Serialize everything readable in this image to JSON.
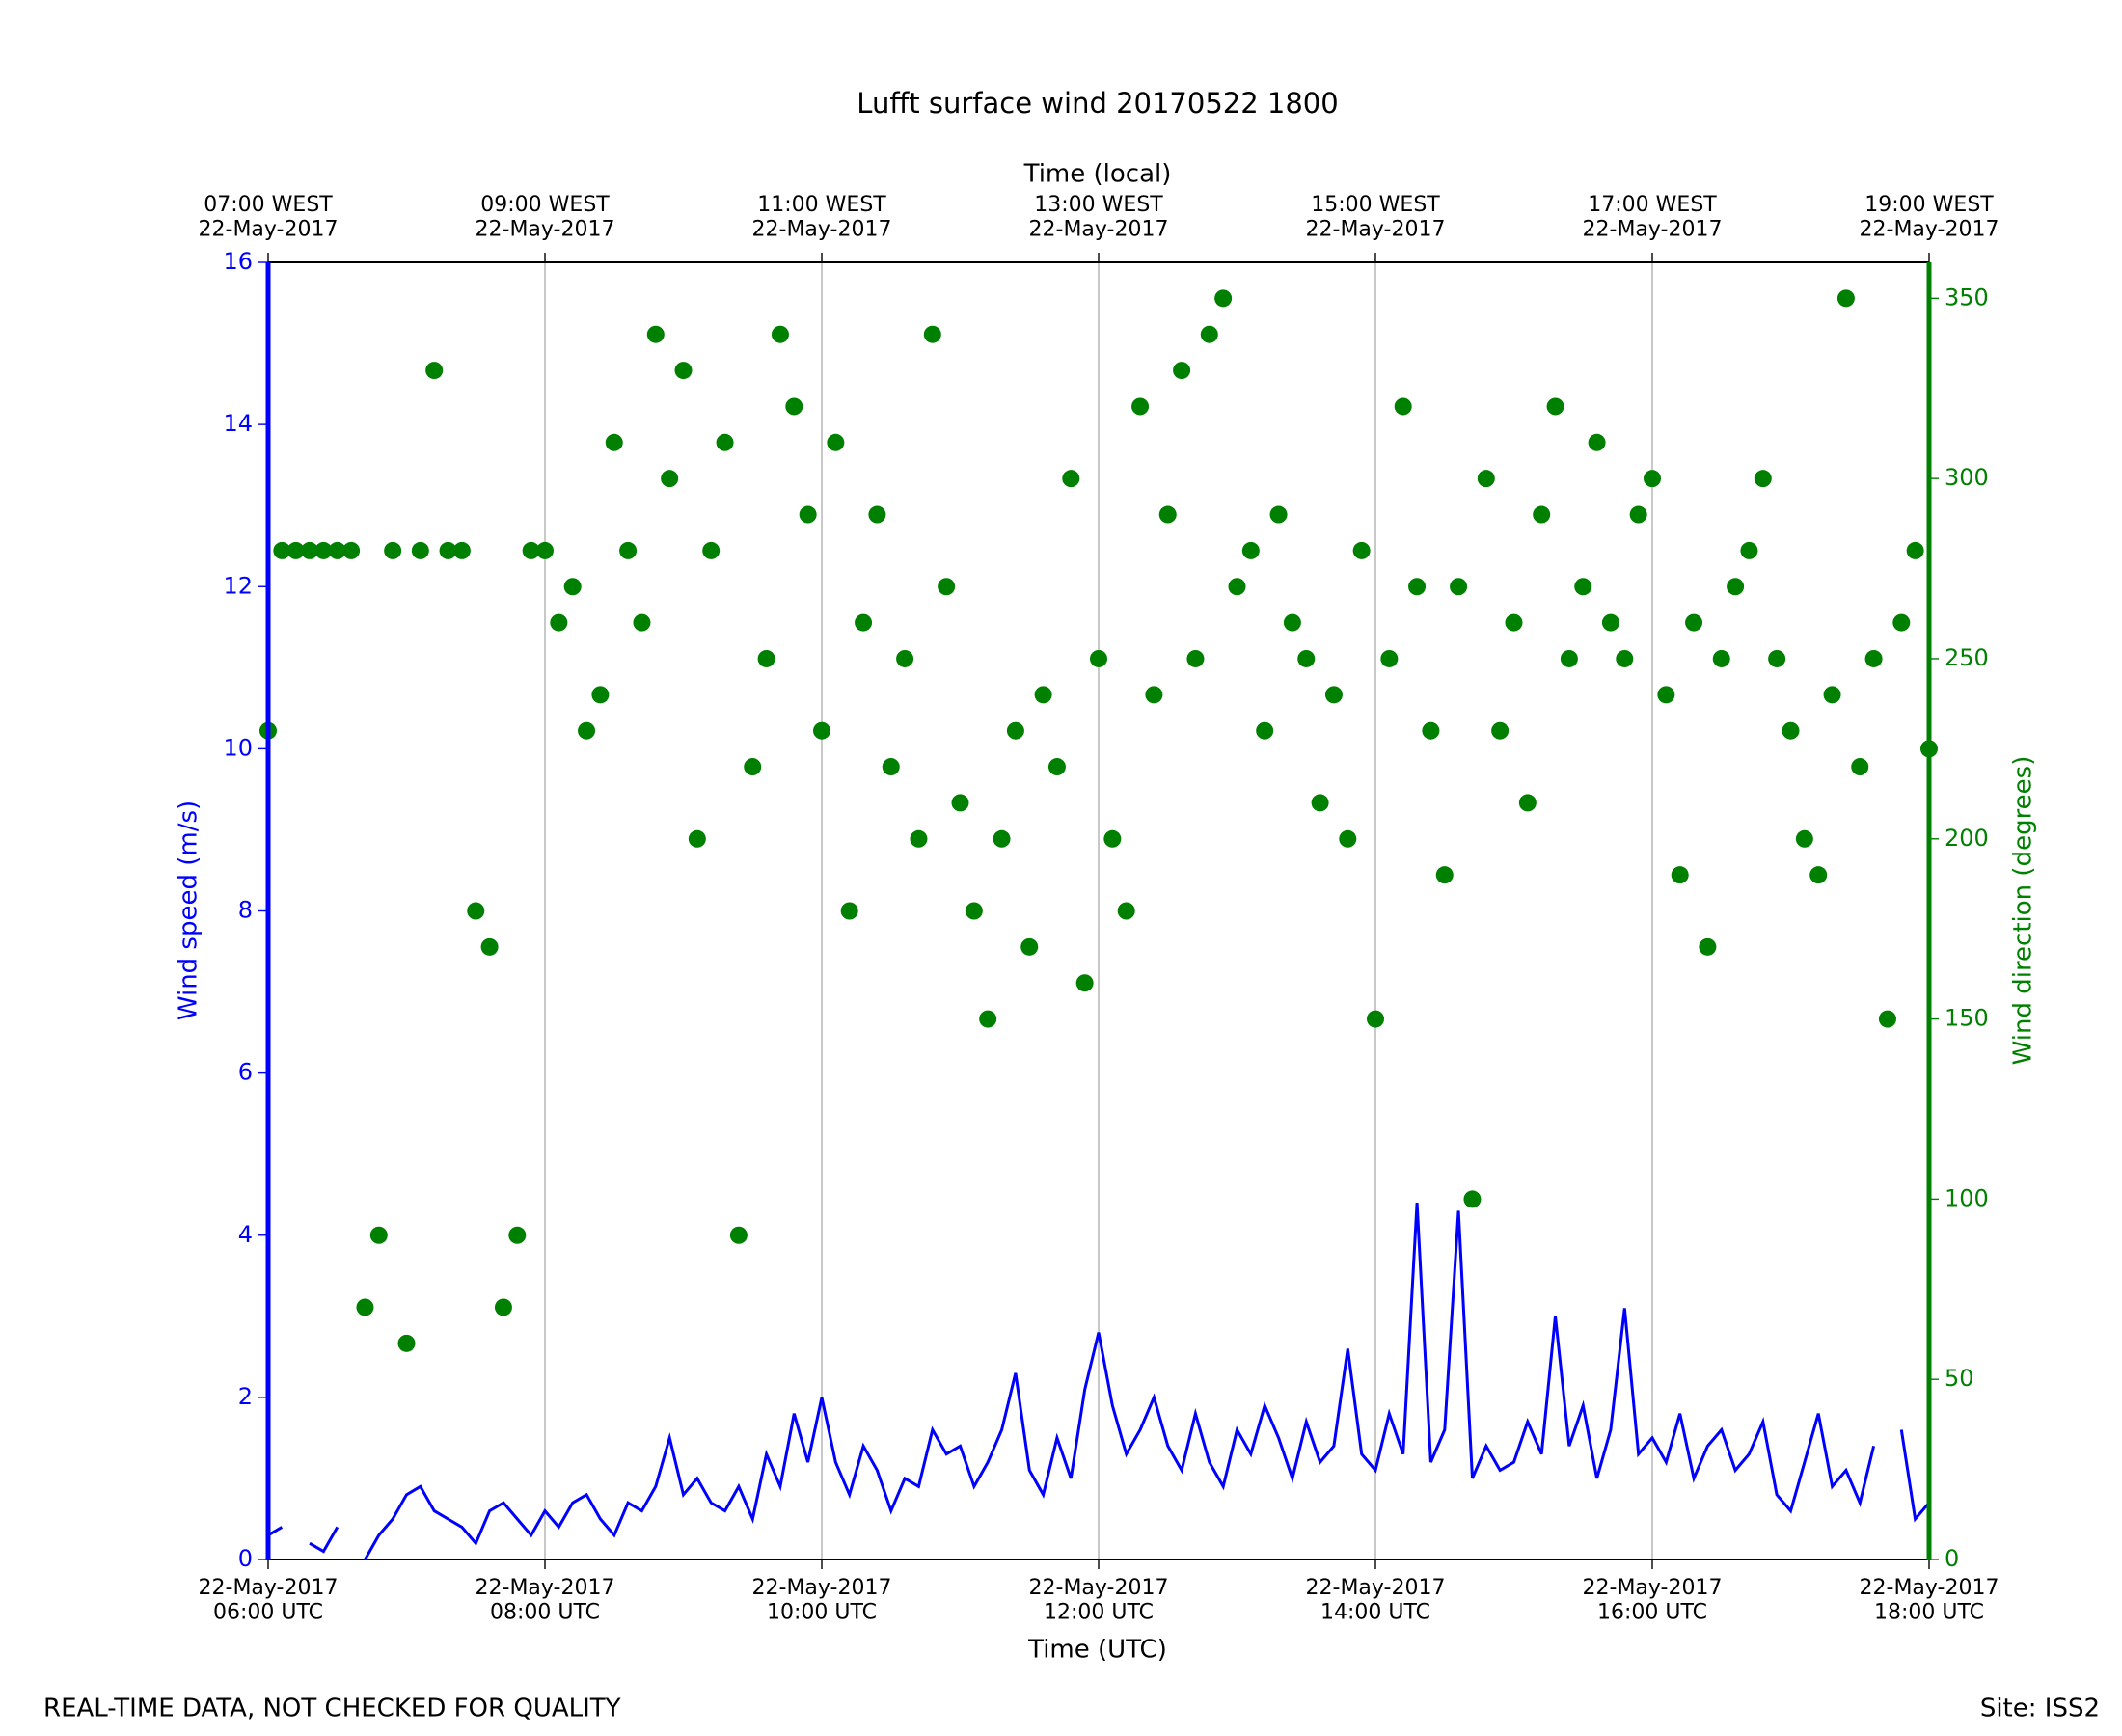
{
  "chart_data": {
    "type": "line",
    "title": "Lufft surface wind 20170522 1800",
    "xlabel": "Time (UTC)",
    "x2label": "Time (local)",
    "ylabel": "Wind speed (m/s)",
    "y2label": "Wind direction (degrees)",
    "footer_left": "REAL-TIME DATA, NOT CHECKED FOR QUALITY",
    "footer_right": "Site: ISS2",
    "grid": true,
    "xlim": [
      6,
      18
    ],
    "xticks": [
      {
        "value": 6,
        "label": "22-May-2017\n06:00 UTC"
      },
      {
        "value": 8,
        "label": "22-May-2017\n08:00 UTC"
      },
      {
        "value": 10,
        "label": "22-May-2017\n10:00 UTC"
      },
      {
        "value": 12,
        "label": "22-May-2017\n12:00 UTC"
      },
      {
        "value": 14,
        "label": "22-May-2017\n14:00 UTC"
      },
      {
        "value": 16,
        "label": "22-May-2017\n16:00 UTC"
      },
      {
        "value": 18,
        "label": "22-May-2017\n18:00 UTC"
      }
    ],
    "x2ticks": [
      {
        "value": 6,
        "label": "07:00 WEST\n22-May-2017"
      },
      {
        "value": 8,
        "label": "09:00 WEST\n22-May-2017"
      },
      {
        "value": 10,
        "label": "11:00 WEST\n22-May-2017"
      },
      {
        "value": 12,
        "label": "13:00 WEST\n22-May-2017"
      },
      {
        "value": 14,
        "label": "15:00 WEST\n22-May-2017"
      },
      {
        "value": 16,
        "label": "17:00 WEST\n22-May-2017"
      },
      {
        "value": 18,
        "label": "19:00 WEST\n22-May-2017"
      }
    ],
    "ylim": [
      0,
      16
    ],
    "yticks": [
      0,
      2,
      4,
      6,
      8,
      10,
      12,
      14,
      16
    ],
    "y2lim": [
      0,
      360
    ],
    "y2ticks": [
      0,
      50,
      100,
      150,
      200,
      250,
      300,
      350
    ],
    "x": [
      6.0,
      6.1,
      6.2,
      6.3,
      6.4,
      6.5,
      6.6,
      6.7,
      6.8,
      6.9,
      7.0,
      7.1,
      7.2,
      7.3,
      7.4,
      7.5,
      7.6,
      7.7,
      7.8,
      7.9,
      8.0,
      8.1,
      8.2,
      8.3,
      8.4,
      8.5,
      8.6,
      8.7,
      8.8,
      8.9,
      9.0,
      9.1,
      9.2,
      9.3,
      9.4,
      9.5,
      9.6,
      9.7,
      9.8,
      9.9,
      10.0,
      10.1,
      10.2,
      10.3,
      10.4,
      10.5,
      10.6,
      10.7,
      10.8,
      10.9,
      11.0,
      11.1,
      11.2,
      11.3,
      11.4,
      11.5,
      11.6,
      11.7,
      11.8,
      11.9,
      12.0,
      12.1,
      12.2,
      12.3,
      12.4,
      12.5,
      12.6,
      12.7,
      12.8,
      12.9,
      13.0,
      13.1,
      13.2,
      13.3,
      13.4,
      13.5,
      13.6,
      13.7,
      13.8,
      13.9,
      14.0,
      14.1,
      14.2,
      14.3,
      14.4,
      14.5,
      14.6,
      14.7,
      14.8,
      14.9,
      15.0,
      15.1,
      15.2,
      15.3,
      15.4,
      15.5,
      15.6,
      15.7,
      15.8,
      15.9,
      16.0,
      16.1,
      16.2,
      16.3,
      16.4,
      16.5,
      16.6,
      16.7,
      16.8,
      16.9,
      17.0,
      17.1,
      17.2,
      17.3,
      17.4,
      17.5,
      17.6,
      17.7,
      17.8,
      17.9,
      18.0
    ],
    "series": [
      {
        "name": "Wind speed (m/s)",
        "color": "#0000ff",
        "kind": "line",
        "axis": "y",
        "values": [
          0.3,
          0.4,
          null,
          0.2,
          0.1,
          0.4,
          null,
          0.0,
          0.3,
          0.5,
          0.8,
          0.9,
          0.6,
          0.5,
          0.4,
          0.2,
          0.6,
          0.7,
          0.5,
          0.3,
          0.6,
          0.4,
          0.7,
          0.8,
          0.5,
          0.3,
          0.7,
          0.6,
          0.9,
          1.5,
          0.8,
          1.0,
          0.7,
          0.6,
          0.9,
          0.5,
          1.3,
          0.9,
          1.8,
          1.2,
          2.0,
          1.2,
          0.8,
          1.4,
          1.1,
          0.6,
          1.0,
          0.9,
          1.6,
          1.3,
          1.4,
          0.9,
          1.2,
          1.6,
          2.3,
          1.1,
          0.8,
          1.5,
          1.0,
          2.1,
          2.8,
          1.9,
          1.3,
          1.6,
          2.0,
          1.4,
          1.1,
          1.8,
          1.2,
          0.9,
          1.6,
          1.3,
          1.9,
          1.5,
          1.0,
          1.7,
          1.2,
          1.4,
          2.6,
          1.3,
          1.1,
          1.8,
          1.3,
          4.4,
          1.2,
          1.6,
          4.3,
          1.0,
          1.4,
          1.1,
          1.2,
          1.7,
          1.3,
          3.0,
          1.4,
          1.9,
          1.0,
          1.6,
          3.1,
          1.3,
          1.5,
          1.2,
          1.8,
          1.0,
          1.4,
          1.6,
          1.1,
          1.3,
          1.7,
          0.8,
          0.6,
          1.2,
          1.8,
          0.9,
          1.1,
          0.7,
          1.4,
          null,
          1.6,
          0.5,
          0.7
        ]
      },
      {
        "name": "Wind direction (degrees)",
        "color": "#008000",
        "kind": "scatter",
        "axis": "y2",
        "values": [
          230,
          280,
          280,
          280,
          280,
          280,
          280,
          70,
          90,
          280,
          60,
          280,
          330,
          280,
          280,
          180,
          170,
          70,
          90,
          280,
          280,
          260,
          270,
          230,
          240,
          310,
          280,
          260,
          340,
          300,
          330,
          200,
          280,
          310,
          90,
          220,
          250,
          340,
          320,
          290,
          230,
          310,
          180,
          260,
          290,
          220,
          250,
          200,
          340,
          270,
          210,
          180,
          150,
          200,
          230,
          170,
          240,
          220,
          300,
          160,
          250,
          200,
          180,
          320,
          240,
          290,
          330,
          250,
          340,
          350,
          270,
          280,
          230,
          290,
          260,
          250,
          210,
          240,
          200,
          280,
          150,
          250,
          320,
          270,
          230,
          190,
          270,
          100,
          300,
          230,
          260,
          210,
          290,
          320,
          250,
          270,
          310,
          260,
          250,
          290,
          300,
          240,
          190,
          260,
          170,
          250,
          270,
          280,
          300,
          250,
          230,
          200,
          190,
          240,
          350,
          220,
          250,
          150,
          260,
          280,
          225
        ]
      }
    ]
  }
}
